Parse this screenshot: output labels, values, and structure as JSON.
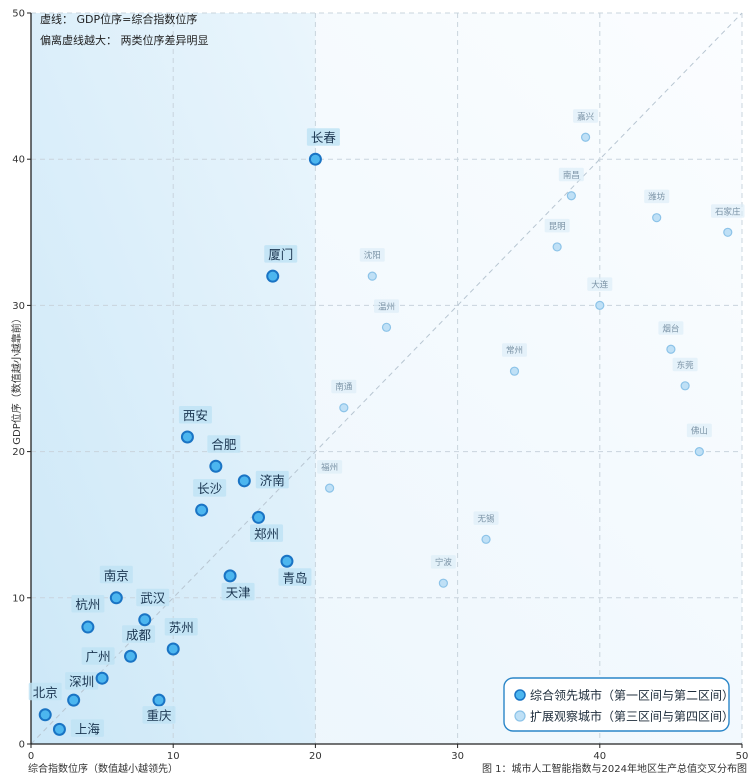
{
  "notes": [
    "虚线：  GDP位序=综合指数位序",
    "偏离虚线越大：  两类位序差异明显"
  ],
  "caption": "图 1：城市人工智能指数与2024年地区生产总值交叉分布图",
  "colors": {
    "lead_fill": "#4cb6ef",
    "lead_stroke": "#1a74c4",
    "ext_fill": "#bfe0f6",
    "ext_stroke": "#8cc3e8",
    "shade": "#d2eaf8",
    "label_bg": "#bfe3f4"
  },
  "chart_data": {
    "type": "scatter",
    "xlabel": "综合指数位序（数值越小越领先）",
    "ylabel": "GDP位序（数值越小越靠前）",
    "xlim": [
      0,
      50
    ],
    "ylim": [
      0,
      50
    ],
    "xticks": [
      0,
      10,
      20,
      30,
      40,
      50
    ],
    "yticks": [
      0,
      10,
      20,
      30,
      40,
      50
    ],
    "grid": true,
    "legend_position": "bottom-right",
    "series": [
      {
        "name": "综合领先城市（第一区间与第二区间）",
        "points": [
          {
            "label": "北京",
            "x": 1,
            "y": 2
          },
          {
            "label": "上海",
            "x": 2,
            "y": 1
          },
          {
            "label": "深圳",
            "x": 3,
            "y": 3
          },
          {
            "label": "广州",
            "x": 5,
            "y": 4.5
          },
          {
            "label": "杭州",
            "x": 4,
            "y": 8
          },
          {
            "label": "南京",
            "x": 6,
            "y": 10
          },
          {
            "label": "成都",
            "x": 7,
            "y": 6
          },
          {
            "label": "武汉",
            "x": 8,
            "y": 8.5
          },
          {
            "label": "苏州",
            "x": 10,
            "y": 6.5
          },
          {
            "label": "重庆",
            "x": 9,
            "y": 3
          },
          {
            "label": "天津",
            "x": 14,
            "y": 11.5
          },
          {
            "label": "青岛",
            "x": 18,
            "y": 12.5
          },
          {
            "label": "郑州",
            "x": 16,
            "y": 15.5
          },
          {
            "label": "长沙",
            "x": 12,
            "y": 16
          },
          {
            "label": "济南",
            "x": 15,
            "y": 18
          },
          {
            "label": "合肥",
            "x": 13,
            "y": 19
          },
          {
            "label": "西安",
            "x": 11,
            "y": 21
          },
          {
            "label": "厦门",
            "x": 17,
            "y": 32
          },
          {
            "label": "长春",
            "x": 20,
            "y": 40
          }
        ]
      },
      {
        "name": "扩展观察城市（第三区间与第四区间）",
        "points": [
          {
            "label": "宁波",
            "x": 29,
            "y": 11
          },
          {
            "label": "无锡",
            "x": 32,
            "y": 14
          },
          {
            "label": "福州",
            "x": 21,
            "y": 17.5
          },
          {
            "label": "佛山",
            "x": 47,
            "y": 20
          },
          {
            "label": "南通",
            "x": 22,
            "y": 23
          },
          {
            "label": "东莞",
            "x": 46,
            "y": 24.5
          },
          {
            "label": "常州",
            "x": 34,
            "y": 25.5
          },
          {
            "label": "烟台",
            "x": 45,
            "y": 27
          },
          {
            "label": "温州",
            "x": 25,
            "y": 28.5
          },
          {
            "label": "大连",
            "x": 40,
            "y": 30
          },
          {
            "label": "沈阳",
            "x": 24,
            "y": 32
          },
          {
            "label": "昆明",
            "x": 37,
            "y": 34
          },
          {
            "label": "石家庄",
            "x": 49,
            "y": 35
          },
          {
            "label": "潍坊",
            "x": 44,
            "y": 36
          },
          {
            "label": "南昌",
            "x": 38,
            "y": 37.5
          },
          {
            "label": "嘉兴",
            "x": 39,
            "y": 41.5
          }
        ]
      }
    ]
  }
}
